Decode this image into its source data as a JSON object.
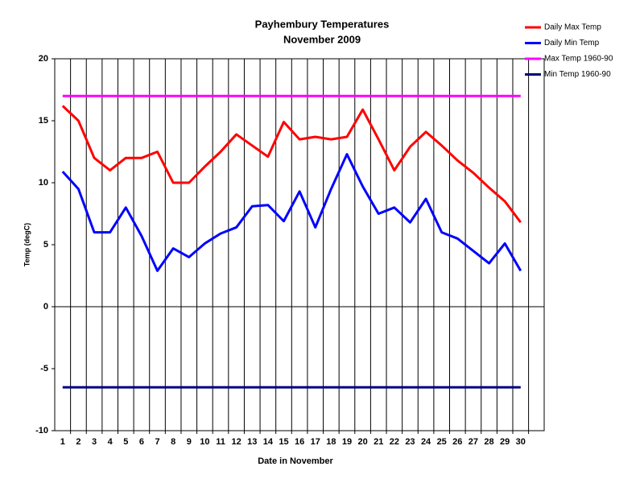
{
  "chart_data": {
    "type": "line",
    "title": "Payhembury Temperatures",
    "subtitle": "November 2009",
    "x_label": "Date in November",
    "y_label": "Temp (degC)",
    "categories": [
      "1",
      "2",
      "3",
      "4",
      "5",
      "6",
      "7",
      "8",
      "9",
      "10",
      "11",
      "12",
      "13",
      "14",
      "15",
      "16",
      "17",
      "18",
      "19",
      "20",
      "21",
      "22",
      "23",
      "24",
      "25",
      "26",
      "27",
      "28",
      "29",
      "30"
    ],
    "series": [
      {
        "name": "Daily Max Temp",
        "color": "#ff0000",
        "values": [
          16.2,
          15,
          12,
          11,
          12,
          12,
          12.5,
          10,
          10,
          11.3,
          12.5,
          13.9,
          13,
          12.1,
          14.9,
          13.5,
          13.7,
          13.5,
          13.7,
          15.9,
          13.5,
          11,
          12.9,
          14.1,
          13,
          11.8,
          10.8,
          9.6,
          8.5,
          6.8
        ]
      },
      {
        "name": "Daily Min Temp",
        "color": "#0000ff",
        "values": [
          10.9,
          9.5,
          6,
          6,
          8,
          5.7,
          2.9,
          4.7,
          4,
          5.1,
          5.9,
          6.4,
          8.1,
          8.2,
          6.9,
          9.3,
          6.4,
          9.5,
          12.3,
          9.7,
          7.5,
          8,
          6.8,
          8.7,
          6,
          5.5,
          4.5,
          3.5,
          5.1,
          2.9
        ]
      },
      {
        "name": "Max Temp 1960-90",
        "color": "#ff00ff",
        "values": [
          17,
          17,
          17,
          17,
          17,
          17,
          17,
          17,
          17,
          17,
          17,
          17,
          17,
          17,
          17,
          17,
          17,
          17,
          17,
          17,
          17,
          17,
          17,
          17,
          17,
          17,
          17,
          17,
          17,
          17
        ]
      },
      {
        "name": "Min Temp 1960-90",
        "color": "#000080",
        "values": [
          -6.5,
          -6.5,
          -6.5,
          -6.5,
          -6.5,
          -6.5,
          -6.5,
          -6.5,
          -6.5,
          -6.5,
          -6.5,
          -6.5,
          -6.5,
          -6.5,
          -6.5,
          -6.5,
          -6.5,
          -6.5,
          -6.5,
          -6.5,
          -6.5,
          -6.5,
          -6.5,
          -6.5,
          -6.5,
          -6.5,
          -6.5,
          -6.5,
          -6.5,
          -6.5
        ]
      }
    ],
    "ylim": [
      -10,
      20
    ],
    "yticks": [
      -10,
      -5,
      0,
      5,
      10,
      15,
      20
    ],
    "grid": true,
    "legend": "top-right"
  }
}
